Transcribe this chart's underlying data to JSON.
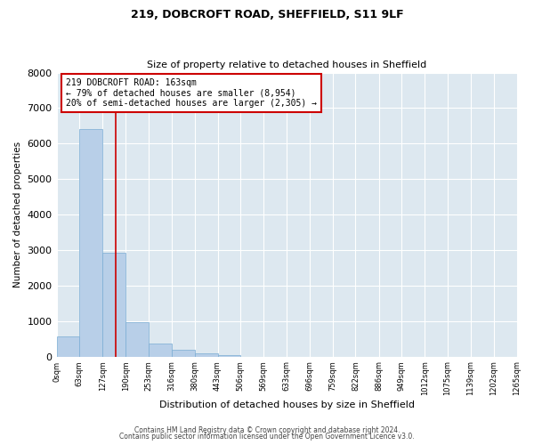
{
  "title": "219, DOBCROFT ROAD, SHEFFIELD, S11 9LF",
  "subtitle": "Size of property relative to detached houses in Sheffield",
  "xlabel": "Distribution of detached houses by size in Sheffield",
  "ylabel": "Number of detached properties",
  "bar_color": "#b8cfe8",
  "bar_edge_color": "#7aadd4",
  "background_color": "#dde8f0",
  "annotation_box_text": "219 DOBCROFT ROAD: 163sqm\n← 79% of detached houses are smaller (8,954)\n20% of semi-detached houses are larger (2,305) →",
  "annotation_box_color": "#cc0000",
  "vline_x": 163,
  "vline_color": "#cc0000",
  "bin_edges": [
    0,
    63,
    127,
    190,
    253,
    316,
    380,
    443,
    506,
    569,
    633,
    696,
    759,
    822,
    886,
    949,
    1012,
    1075,
    1139,
    1202,
    1265
  ],
  "bar_heights": [
    560,
    6400,
    2920,
    980,
    370,
    180,
    90,
    50,
    0,
    0,
    0,
    0,
    0,
    0,
    0,
    0,
    0,
    0,
    0,
    0
  ],
  "ylim": [
    0,
    8000
  ],
  "yticks": [
    0,
    1000,
    2000,
    3000,
    4000,
    5000,
    6000,
    7000,
    8000
  ],
  "footer_line1": "Contains HM Land Registry data © Crown copyright and database right 2024.",
  "footer_line2": "Contains public sector information licensed under the Open Government Licence v3.0."
}
